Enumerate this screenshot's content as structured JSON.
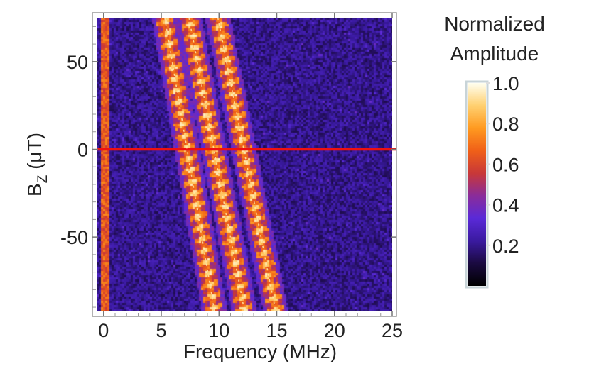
{
  "chart_data": {
    "type": "heatmap",
    "xlabel": "Frequency (MHz)",
    "ylabel": "B",
    "ylabel_subscript": "Z",
    "ylabel_unit": " (μT)",
    "xlim": [
      -0.6,
      25
    ],
    "ylim": [
      -92,
      75
    ],
    "x_ticks": [
      0,
      5,
      10,
      15,
      20,
      25
    ],
    "x_tick_labels": [
      "0",
      "5",
      "10",
      "15",
      "20",
      "25"
    ],
    "y_ticks": [
      50,
      0,
      -50
    ],
    "y_tick_labels": [
      "50",
      "0",
      "-50"
    ],
    "colorbar": {
      "title_line1": "Normalized",
      "title_line2": "Amplitude",
      "range": [
        0.0,
        1.0
      ],
      "ticks": [
        1.0,
        0.8,
        0.6,
        0.4,
        0.2
      ],
      "tick_labels": [
        "1.0",
        "0.8",
        "0.6",
        "0.4",
        "0.2"
      ],
      "colormap": [
        "#000000",
        "#1a0a40",
        "#3a1aa0",
        "#5a2ad8",
        "#8a2c9a",
        "#c83838",
        "#f06018",
        "#ff9a20",
        "#ffd070",
        "#fffff0"
      ]
    },
    "reference_line": {
      "y": 0,
      "color": "#ee1111"
    },
    "features": [
      {
        "name": "resonance-line-1",
        "freq_at_top": 5.3,
        "freq_at_bottom": 9.6
      },
      {
        "name": "resonance-line-2",
        "freq_at_top": 7.4,
        "freq_at_bottom": 12.2
      },
      {
        "name": "resonance-line-3",
        "freq_at_top": 9.9,
        "freq_at_bottom": 14.9
      },
      {
        "name": "dc-edge",
        "freq_at_top": 0.1,
        "freq_at_bottom": 0.1
      }
    ]
  }
}
